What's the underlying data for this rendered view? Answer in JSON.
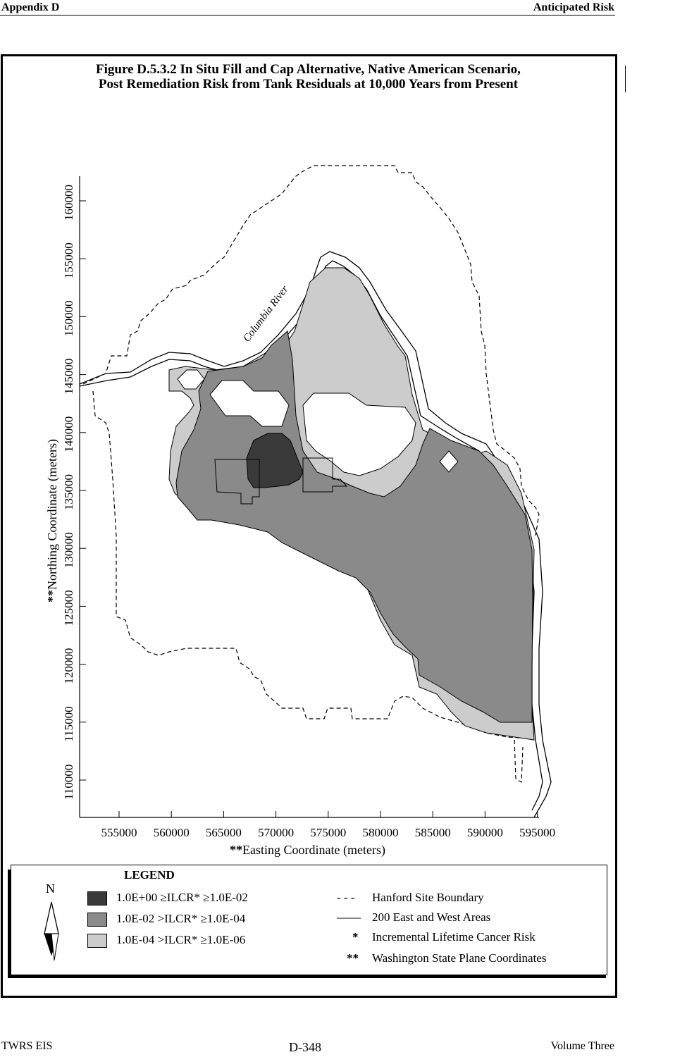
{
  "header": {
    "left": "Appendix D",
    "right": "Anticipated Risk"
  },
  "title": {
    "line1": "Figure D.5.3.2  In Situ Fill and Cap Alternative, Native American Scenario,",
    "line2": "Post Remediation Risk from Tank Residuals at 10,000 Years from Present"
  },
  "map": {
    "river_label": "Columbia River",
    "x_axis": {
      "label": "Easting Coordinate (meters)",
      "label_prefix": "**",
      "ticks": [
        "555000",
        "560000",
        "565000",
        "570000",
        "575000",
        "580000",
        "585000",
        "590000",
        "595000"
      ]
    },
    "y_axis": {
      "label": "Northing Coordinate (meters)",
      "label_prefix": "**",
      "ticks": [
        "110000",
        "115000",
        "120000",
        "125000",
        "130000",
        "135000",
        "140000",
        "145000",
        "150000",
        "155000",
        "160000"
      ]
    },
    "colors": {
      "high": "#3a3a3a",
      "medium": "#8a8a8a",
      "low": "#cccccc"
    }
  },
  "legend": {
    "title": "LEGEND",
    "north": "N",
    "items": [
      {
        "text": "1.0E+00 ≥ILCR* ≥1.0E-02",
        "color": "#3a3a3a"
      },
      {
        "text": "1.0E-02 >ILCR* ≥1.0E-04",
        "color": "#8a8a8a"
      },
      {
        "text": "1.0E-04 >ILCR* ≥1.0E-06",
        "color": "#cccccc"
      }
    ],
    "keys": [
      {
        "symbol": "- - -",
        "text": "Hanford Site Boundary"
      },
      {
        "symbol": "——",
        "text": "200 East and West Areas"
      },
      {
        "symbol": "*",
        "text": "Incremental Lifetime Cancer Risk"
      },
      {
        "symbol": "**",
        "text": "Washington State Plane Coordinates"
      }
    ]
  },
  "footer": {
    "left": "TWRS EIS",
    "center": "D-348",
    "right": "Volume Three"
  }
}
